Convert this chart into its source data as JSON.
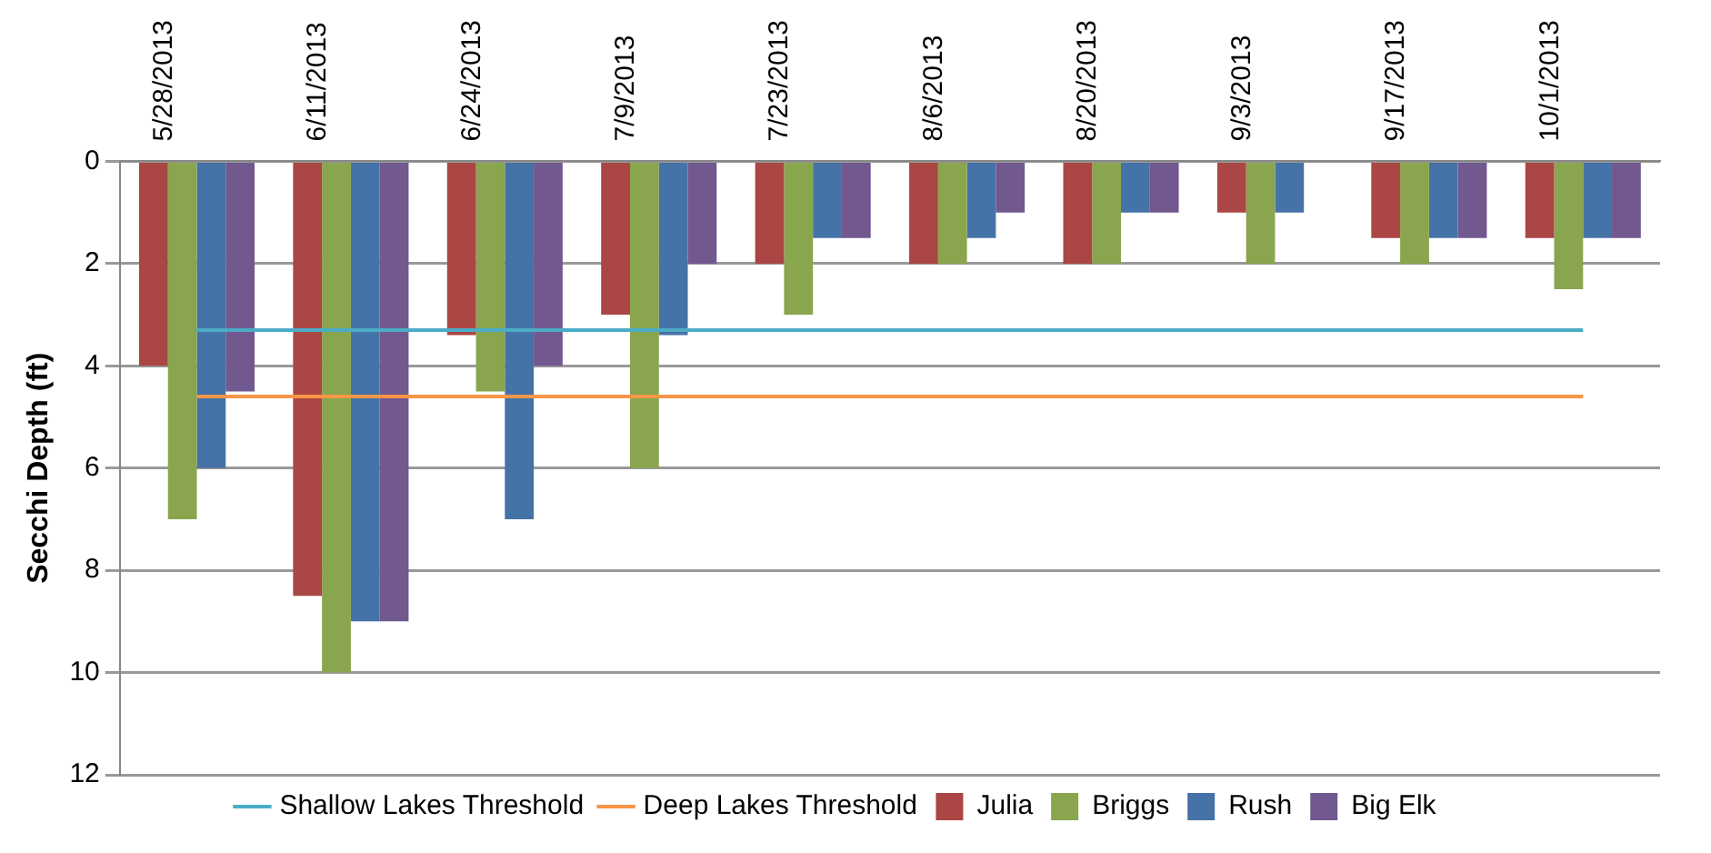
{
  "chart_data": {
    "type": "bar",
    "ylabel": "Secchi Depth (ft)",
    "categories": [
      "5/28/2013",
      "6/11/2013",
      "6/24/2013",
      "7/9/2013",
      "7/23/2013",
      "8/6/2013",
      "8/20/2013",
      "9/3/2013",
      "9/17/2013",
      "10/1/2013"
    ],
    "series": [
      {
        "name": "Julia",
        "color": "#aa4643",
        "values": [
          4,
          8.5,
          3.4,
          3,
          2,
          2,
          2,
          1,
          1.5,
          1.5
        ]
      },
      {
        "name": "Briggs",
        "color": "#89a54e",
        "values": [
          7,
          10,
          4.5,
          6,
          3,
          2,
          2,
          2,
          2,
          2.5
        ]
      },
      {
        "name": "Rush",
        "color": "#4572a7",
        "values": [
          6,
          9,
          7,
          3.4,
          1.5,
          1.5,
          1,
          1,
          1.5,
          1.5
        ]
      },
      {
        "name": "Big Elk",
        "color": "#71588f",
        "values": [
          4.5,
          9,
          4,
          2,
          1.5,
          1,
          1,
          null,
          1.5,
          1.5
        ]
      },
      {
        "name": "Shallow Lakes Threshold",
        "type": "line",
        "color": "#4bacc6",
        "values": [
          3.3,
          3.3,
          3.3,
          3.3,
          3.3,
          3.3,
          3.3,
          3.3,
          3.3,
          3.3
        ]
      },
      {
        "name": "Deep Lakes Threshold",
        "type": "line",
        "color": "#f79646",
        "values": [
          4.6,
          4.6,
          4.6,
          4.6,
          4.6,
          4.6,
          4.6,
          4.6,
          4.6,
          4.6
        ]
      }
    ],
    "ylim": [
      12,
      0
    ],
    "yticks": [
      0,
      2,
      4,
      6,
      8,
      10,
      12
    ],
    "grid": "y",
    "legend": "bottom",
    "marker": "none"
  }
}
